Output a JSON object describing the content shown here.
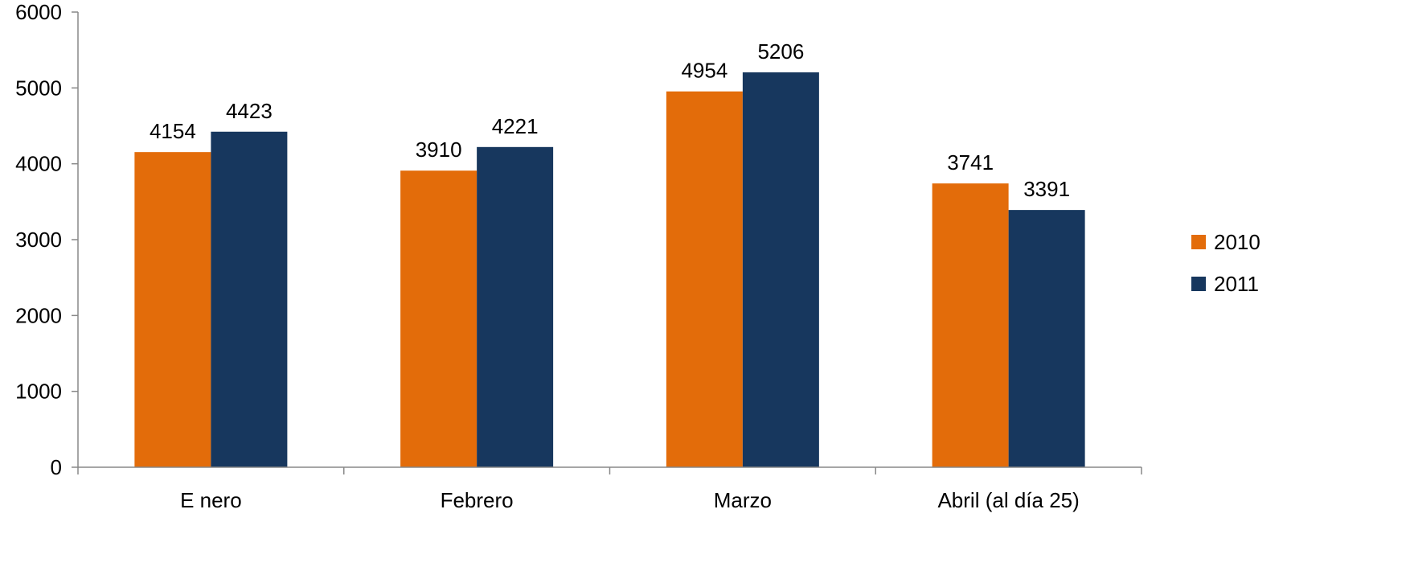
{
  "chart_data": {
    "type": "bar",
    "title": "",
    "xlabel": "",
    "ylabel": "",
    "categories": [
      "E nero",
      "Febrero",
      "Marzo",
      "Abril (al día 25)"
    ],
    "series": [
      {
        "name": "2010",
        "color": "#E36C0A",
        "values": [
          4154,
          3910,
          4954,
          3741
        ]
      },
      {
        "name": "2011",
        "color": "#17375E",
        "values": [
          4423,
          4221,
          5206,
          3391
        ]
      }
    ],
    "ylim": [
      0,
      6000
    ],
    "yticks": [
      0,
      1000,
      2000,
      3000,
      4000,
      5000,
      6000
    ],
    "grid": false,
    "legend": "right",
    "data_labels": true
  }
}
